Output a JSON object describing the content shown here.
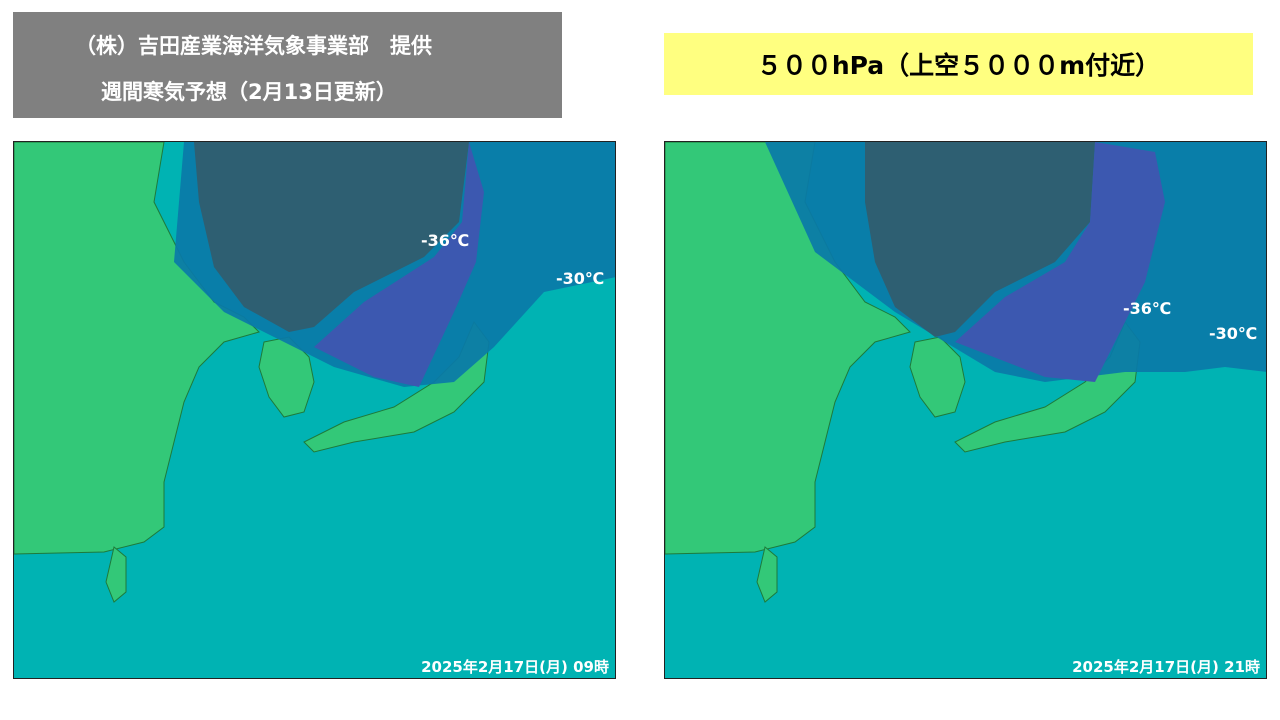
{
  "header": {
    "provider": "（株）吉田産業海洋気象事業部　提供",
    "subtitle": "週間寒気予想（2月13日更新）"
  },
  "level_label": "５００hPa（上空５０００m付近）",
  "maps": [
    {
      "labels": [
        "-36℃",
        "-30℃"
      ],
      "timestamp": "2025年2月17日(月) 09時"
    },
    {
      "labels": [
        "-36℃",
        "-30℃"
      ],
      "timestamp": "2025年2月17日(月) 21時"
    }
  ]
}
